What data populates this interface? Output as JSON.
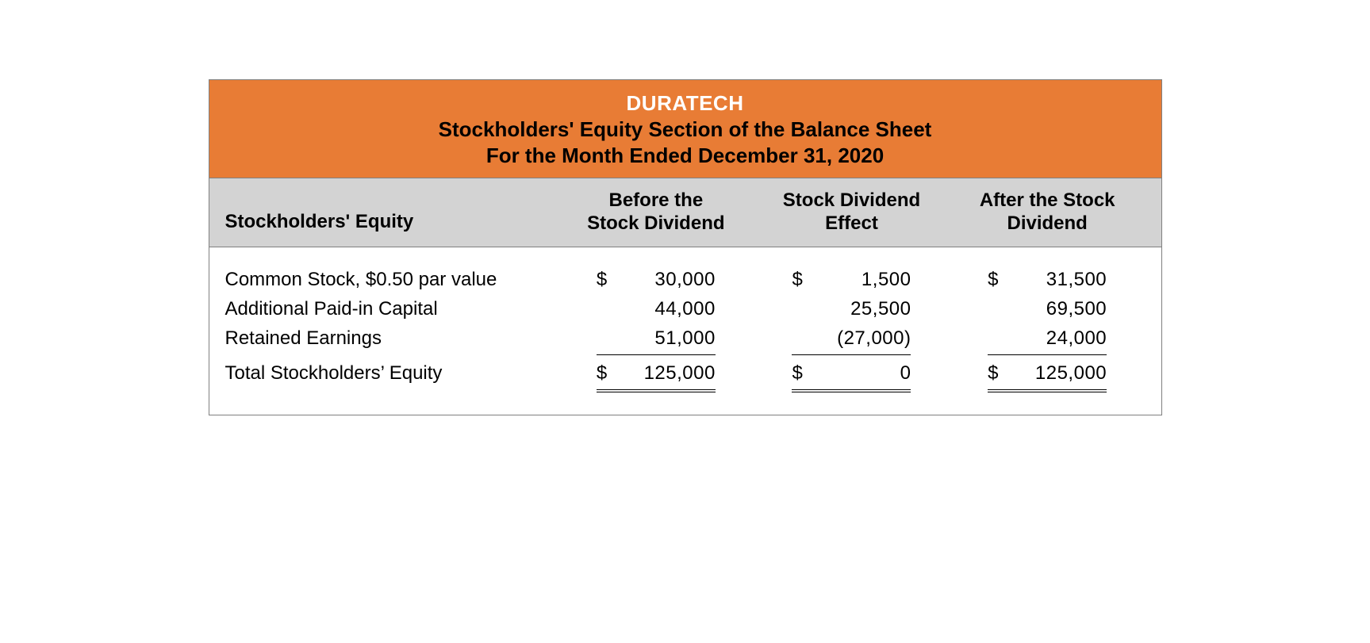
{
  "header": {
    "company": "DURATECH",
    "section": "Stockholders' Equity Section of the Balance Sheet",
    "period": "For the Month Ended December 31, 2020"
  },
  "columns": {
    "label": "Stockholders' Equity",
    "col1_line1": "Before the",
    "col1_line2": "Stock Dividend",
    "col2_line1": "Stock Dividend",
    "col2_line2": "Effect",
    "col3_line1": "After the Stock",
    "col3_line2": "Dividend"
  },
  "rows": {
    "r1": {
      "label": "Common Stock, $0.50 par value",
      "c1_sym": "$",
      "c1_num": "30,000",
      "c2_sym": "$",
      "c2_num": "1,500",
      "c3_sym": "$",
      "c3_num": "31,500"
    },
    "r2": {
      "label": "Additional Paid-in Capital",
      "c1_sym": "",
      "c1_num": "44,000",
      "c2_sym": "",
      "c2_num": "25,500",
      "c3_sym": "",
      "c3_num": "69,500"
    },
    "r3": {
      "label": "Retained Earnings",
      "c1_sym": "",
      "c1_num": "51,000",
      "c2_sym": "",
      "c2_num": "(27,000)",
      "c3_sym": "",
      "c3_num": "24,000"
    },
    "r4": {
      "label": "Total Stockholders’ Equity",
      "c1_sym": "$",
      "c1_num": "125,000",
      "c2_sym": "$",
      "c2_num": "0",
      "c3_sym": "$",
      "c3_num": "125,000"
    }
  },
  "styling": {
    "header_bg": "#e87c35",
    "colhead_bg": "#d3d3d3",
    "border_color": "#808080",
    "text_color": "#000000",
    "company_color": "#ffffff",
    "font_family": "Helvetica Neue, Arial, sans-serif",
    "title_fontsize": 26,
    "body_fontsize": 24
  }
}
